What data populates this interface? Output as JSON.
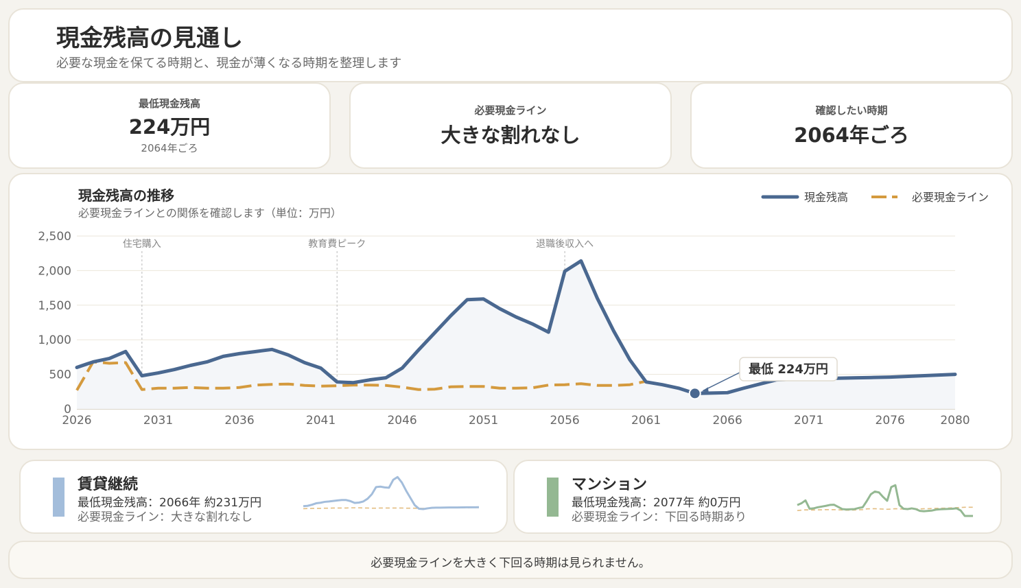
{
  "header": {
    "title": "現金残高の見通し",
    "subtitle": "必要な現金を保てる時期と、現金が薄くなる時期を整理します"
  },
  "kpis": [
    {
      "label": "最低現金残高",
      "value": "224万円",
      "sub": "2064年ごろ"
    },
    {
      "label": "必要現金ライン",
      "value": "大きな割れなし"
    },
    {
      "label": "確認したい時期",
      "value": "2064年ごろ"
    }
  ],
  "colors": {
    "balance": "#4a6890",
    "required": "#d49a3e",
    "rental": "#a3bddb",
    "mansion": "#94b892",
    "grid": "#ebe6da",
    "area": "#f4f6f9"
  },
  "chart_data": {
    "type": "line",
    "title": "現金残高の推移",
    "subtitle": "必要現金ラインとの関係を確認します（単位：万円）",
    "xlabel": "",
    "ylabel": "",
    "xlim": [
      2026,
      2080
    ],
    "ylim": [
      0,
      2500
    ],
    "x_ticks": [
      2026,
      2031,
      2036,
      2041,
      2046,
      2051,
      2056,
      2061,
      2066,
      2071,
      2076,
      2080
    ],
    "x_tick_labels": [
      "2026",
      "2031",
      "2036",
      "2041",
      "2046",
      "2051",
      "2056",
      "2061",
      "2066",
      "2071",
      "2076",
      "2080"
    ],
    "y_ticks": [
      0,
      500,
      1000,
      1500,
      2000,
      2500
    ],
    "y_tick_labels": [
      "0",
      "500",
      "1,000",
      "1,500",
      "2,000",
      "2,500"
    ],
    "grid": true,
    "legend_position": "top-right",
    "series": [
      {
        "name": "現金残高",
        "x": [
          2026,
          2027,
          2028,
          2029,
          2030,
          2031,
          2032,
          2033,
          2034,
          2035,
          2036,
          2037,
          2038,
          2039,
          2040,
          2041,
          2042,
          2043,
          2044,
          2045,
          2046,
          2047,
          2048,
          2049,
          2050,
          2051,
          2052,
          2053,
          2054,
          2055,
          2056,
          2057,
          2058,
          2059,
          2060,
          2061,
          2062,
          2063,
          2064,
          2065,
          2066,
          2067,
          2068,
          2069,
          2070,
          2071,
          2072,
          2073,
          2074,
          2075,
          2076,
          2077,
          2078,
          2079,
          2080
        ],
        "values": [
          600,
          680,
          730,
          830,
          480,
          520,
          570,
          630,
          680,
          760,
          800,
          830,
          860,
          780,
          670,
          590,
          390,
          380,
          420,
          450,
          590,
          850,
          1100,
          1350,
          1580,
          1590,
          1450,
          1330,
          1230,
          1110,
          1990,
          2140,
          1600,
          1130,
          710,
          390,
          350,
          300,
          224,
          230,
          235,
          300,
          360,
          420,
          430,
          435,
          440,
          445,
          450,
          455,
          460,
          470,
          480,
          490,
          500
        ]
      },
      {
        "name": "必要現金ライン",
        "x": [
          2026,
          2027,
          2028,
          2029,
          2030,
          2031,
          2032,
          2033,
          2034,
          2035,
          2036,
          2037,
          2038,
          2039,
          2040,
          2041,
          2042,
          2043,
          2044,
          2045,
          2046,
          2047,
          2048,
          2049,
          2050,
          2051,
          2052,
          2053,
          2054,
          2055,
          2056,
          2057,
          2058,
          2059,
          2060,
          2061
        ],
        "values": [
          270,
          680,
          660,
          670,
          280,
          300,
          300,
          310,
          300,
          300,
          310,
          345,
          355,
          360,
          340,
          330,
          335,
          345,
          345,
          340,
          315,
          280,
          285,
          320,
          325,
          325,
          300,
          300,
          305,
          345,
          350,
          365,
          340,
          340,
          350,
          400
        ]
      }
    ],
    "event_lines": [
      {
        "x": 2030,
        "label": "住宅購入"
      },
      {
        "x": 2042,
        "label": "教育費ピーク"
      },
      {
        "x": 2056,
        "label": "退職後収入へ"
      }
    ],
    "annotation": {
      "x": 2064,
      "y": 224,
      "label": "最低 224万円"
    }
  },
  "scenarios": [
    {
      "title": "賃貸継続",
      "line1": "最低現金残高：2066年 約231万円",
      "line2": "必要現金ライン：大きな割れなし",
      "spark": [
        540,
        560,
        620,
        700,
        730,
        780,
        800,
        830,
        860,
        880,
        880,
        820,
        720,
        740,
        800,
        950,
        1200,
        1600,
        1620,
        1580,
        1560,
        2000,
        2150,
        1850,
        1400,
        1000,
        600,
        400,
        380,
        420,
        450,
        460,
        460,
        465,
        470,
        470,
        470,
        475,
        478,
        480,
        480,
        485
      ],
      "spark_required": [
        400,
        410,
        420,
        420,
        420,
        430,
        430,
        440,
        440,
        440,
        440,
        450,
        450,
        450,
        440,
        440,
        430,
        430,
        440,
        440,
        440,
        440,
        440,
        440,
        430,
        430,
        430,
        420,
        420,
        440,
        450,
        450,
        450,
        450,
        450,
        450,
        450,
        450,
        450,
        460,
        460,
        460
      ]
    },
    {
      "title": "マンション",
      "line1": "最低現金残高：2077年 約0万円",
      "line2": "必要現金ライン：下回る時期あり",
      "spark": [
        600,
        700,
        860,
        400,
        420,
        480,
        520,
        560,
        610,
        620,
        500,
        380,
        360,
        370,
        380,
        440,
        480,
        820,
        1200,
        1350,
        1300,
        1050,
        840,
        1600,
        1700,
        600,
        400,
        380,
        420,
        380,
        280,
        260,
        280,
        300,
        350,
        370,
        380,
        390,
        400,
        420,
        300,
        0,
        0,
        0
      ],
      "spark_required": [
        300,
        320,
        340,
        330,
        330,
        340,
        340,
        350,
        350,
        350,
        340,
        330,
        320,
        320,
        330,
        340,
        350,
        390,
        400,
        400,
        390,
        380,
        370,
        380,
        400,
        390,
        380,
        380,
        380,
        390,
        390,
        400,
        400,
        410,
        420,
        430,
        430,
        440,
        450,
        460,
        470,
        480,
        480,
        480
      ]
    }
  ],
  "footer": {
    "message": "必要現金ラインを大きく下回る時期は見られません。"
  }
}
